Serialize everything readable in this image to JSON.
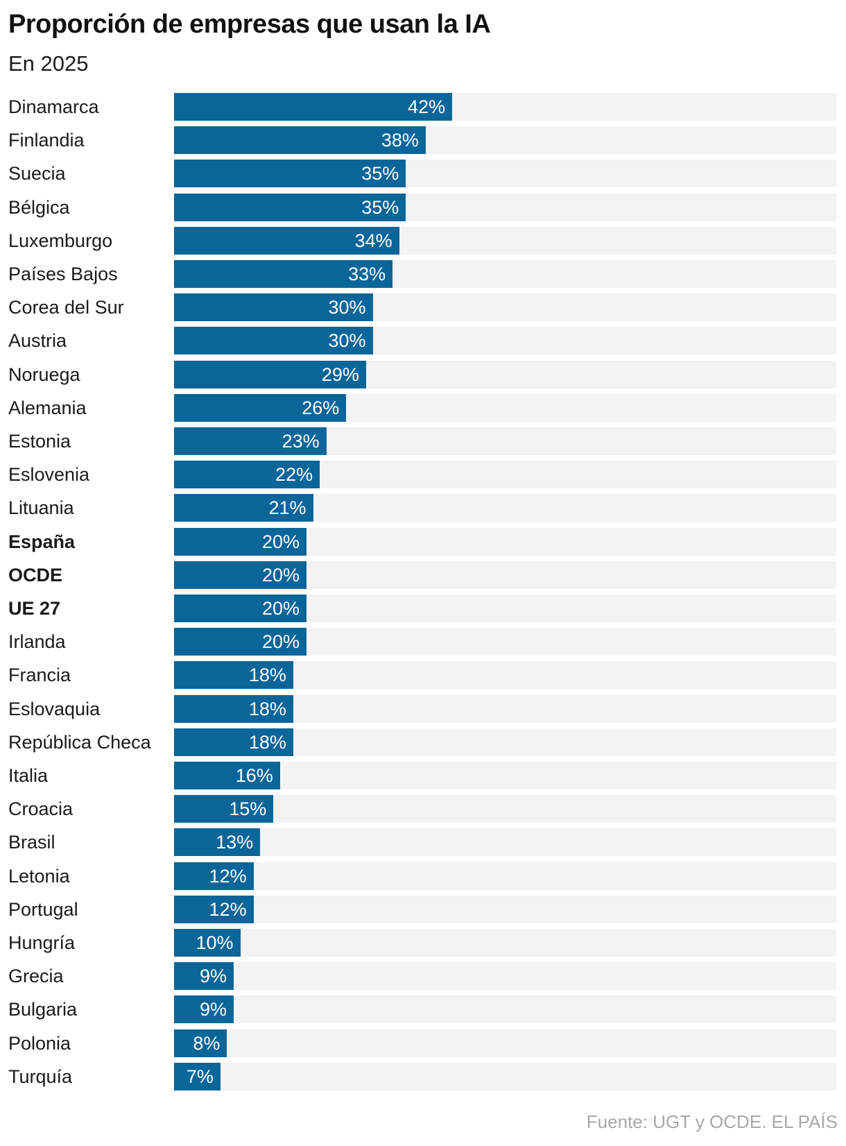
{
  "chart_data": {
    "type": "bar",
    "orientation": "horizontal",
    "title": "Proporción de empresas que usan la IA",
    "subtitle": "En 2025",
    "source": "Fuente: UGT y OCDE. EL PAÍS",
    "unit": "%",
    "xlim": [
      0,
      100
    ],
    "colors": {
      "bar": "#0a6599",
      "track": "#f3f3f3",
      "value_text": "#ffffff",
      "source_text": "#a8a8a8"
    },
    "rows": [
      {
        "category": "Dinamarca",
        "value": 42,
        "label": "42%",
        "bold": false
      },
      {
        "category": "Finlandia",
        "value": 38,
        "label": "38%",
        "bold": false
      },
      {
        "category": "Suecia",
        "value": 35,
        "label": "35%",
        "bold": false
      },
      {
        "category": "Bélgica",
        "value": 35,
        "label": "35%",
        "bold": false
      },
      {
        "category": "Luxemburgo",
        "value": 34,
        "label": "34%",
        "bold": false
      },
      {
        "category": "Países Bajos",
        "value": 33,
        "label": "33%",
        "bold": false
      },
      {
        "category": "Corea del Sur",
        "value": 30,
        "label": "30%",
        "bold": false
      },
      {
        "category": "Austria",
        "value": 30,
        "label": "30%",
        "bold": false
      },
      {
        "category": "Noruega",
        "value": 29,
        "label": "29%",
        "bold": false
      },
      {
        "category": "Alemania",
        "value": 26,
        "label": "26%",
        "bold": false
      },
      {
        "category": "Estonia",
        "value": 23,
        "label": "23%",
        "bold": false
      },
      {
        "category": "Eslovenia",
        "value": 22,
        "label": "22%",
        "bold": false
      },
      {
        "category": "Lituania",
        "value": 21,
        "label": "21%",
        "bold": false
      },
      {
        "category": "España",
        "value": 20,
        "label": "20%",
        "bold": true
      },
      {
        "category": "OCDE",
        "value": 20,
        "label": "20%",
        "bold": true
      },
      {
        "category": "UE 27",
        "value": 20,
        "label": "20%",
        "bold": true
      },
      {
        "category": "Irlanda",
        "value": 20,
        "label": "20%",
        "bold": false
      },
      {
        "category": "Francia",
        "value": 18,
        "label": "18%",
        "bold": false
      },
      {
        "category": "Eslovaquia",
        "value": 18,
        "label": "18%",
        "bold": false
      },
      {
        "category": "República Checa",
        "value": 18,
        "label": "18%",
        "bold": false
      },
      {
        "category": "Italia",
        "value": 16,
        "label": "16%",
        "bold": false
      },
      {
        "category": "Croacia",
        "value": 15,
        "label": "15%",
        "bold": false
      },
      {
        "category": "Brasil",
        "value": 13,
        "label": "13%",
        "bold": false
      },
      {
        "category": "Letonia",
        "value": 12,
        "label": "12%",
        "bold": false
      },
      {
        "category": "Portugal",
        "value": 12,
        "label": "12%",
        "bold": false
      },
      {
        "category": "Hungría",
        "value": 10,
        "label": "10%",
        "bold": false
      },
      {
        "category": "Grecia",
        "value": 9,
        "label": "9%",
        "bold": false
      },
      {
        "category": "Bulgaria",
        "value": 9,
        "label": "9%",
        "bold": false
      },
      {
        "category": "Polonia",
        "value": 8,
        "label": "8%",
        "bold": false
      },
      {
        "category": "Turquía",
        "value": 7,
        "label": "7%",
        "bold": false
      }
    ]
  }
}
